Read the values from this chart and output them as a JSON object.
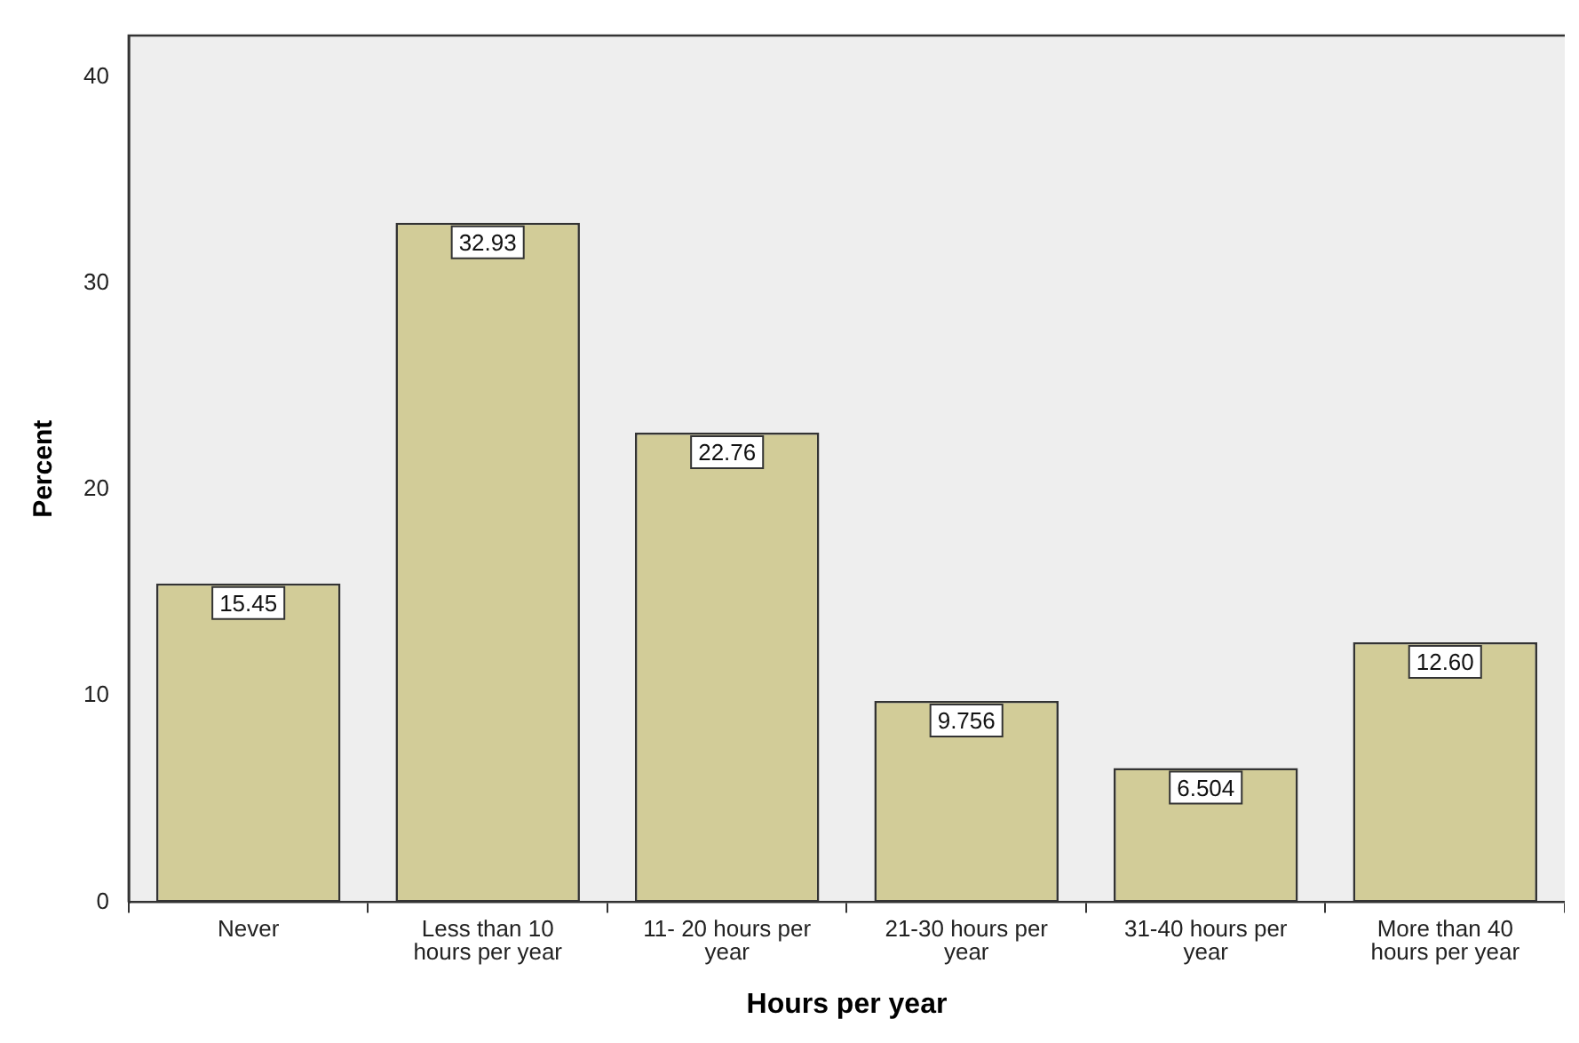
{
  "chart_data": {
    "type": "bar",
    "xlabel": "Hours per year",
    "ylabel": "Percent",
    "categories": [
      "Never",
      "Less than 10 hours per year",
      "11- 20 hours per year",
      "21-30 hours per year",
      "31-40 hours per year",
      "More than 40 hours per year"
    ],
    "values": [
      15.45,
      32.93,
      22.76,
      9.756,
      6.504,
      12.6
    ],
    "value_labels": [
      "15.45",
      "32.93",
      "22.76",
      "9.756",
      "6.504",
      "12.60"
    ],
    "color": "#d2cc98",
    "ylim": [
      0,
      42
    ],
    "yticks": [
      0,
      10,
      20,
      30,
      40
    ],
    "grid": false,
    "legend": false
  }
}
